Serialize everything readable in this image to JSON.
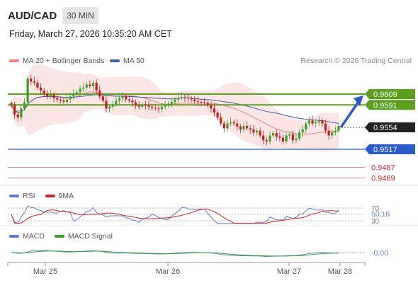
{
  "header": {
    "pair": "AUD/CAD",
    "timeframe": "30 MIN",
    "datetime": "Friday, March 27, 2026 10:35:20 AM CET"
  },
  "legend": {
    "ma20": "MA 20 + Bollinger Bands",
    "ma50": "MA 50",
    "ma20_color": "#f08080",
    "ma50_color": "#3a5f9e"
  },
  "credit": "Research © 2026 Trading Central",
  "rsi_legend": {
    "rsi": "RSI",
    "ma9": "9MA",
    "rsi_color": "#5b7fd6",
    "ma9_color": "#d22020"
  },
  "macd_legend": {
    "macd": "MACD",
    "signal": "MACD Signal",
    "macd_color": "#5b7fd6",
    "signal_color": "#3aa02a"
  },
  "chart_data": {
    "type": "candlestick",
    "ylim": [
      0.9455,
      0.9648
    ],
    "x_ticks": [
      "Mar 25",
      "Mar 26",
      "Mar 27",
      "Mar 28"
    ],
    "current_price": "0.9554",
    "levels": [
      {
        "label": "0.9609",
        "value": 0.9609,
        "color": "#5aa01e"
      },
      {
        "label": "0.9591",
        "value": 0.9591,
        "color": "#5aa01e"
      },
      {
        "label": "0.9517",
        "value": 0.9517,
        "color": "#2a5bc8"
      },
      {
        "label": "0.9487",
        "value": 0.9487,
        "color": "#e27575"
      },
      {
        "label": "0.9469",
        "value": 0.9469,
        "color": "#e27575"
      }
    ],
    "forecast_arrow": {
      "from": 0.9555,
      "to": 0.9608
    },
    "close": [
      0.959,
      0.9575,
      0.957,
      0.9585,
      0.9595,
      0.9635,
      0.963,
      0.9628,
      0.962,
      0.9615,
      0.961,
      0.9605,
      0.9608,
      0.9602,
      0.96,
      0.9598,
      0.9596,
      0.96,
      0.9605,
      0.961,
      0.9612,
      0.9618,
      0.962,
      0.9625,
      0.9622,
      0.9628,
      0.9615,
      0.9605,
      0.9598,
      0.9585,
      0.9588,
      0.9592,
      0.9598,
      0.9602,
      0.9605,
      0.96,
      0.9598,
      0.9595,
      0.959,
      0.9588,
      0.9592,
      0.959,
      0.9588,
      0.9586,
      0.9585,
      0.9584,
      0.9588,
      0.959,
      0.9593,
      0.9596,
      0.96,
      0.9602,
      0.9604,
      0.9603,
      0.9602,
      0.96,
      0.9597,
      0.9596,
      0.9595,
      0.9594,
      0.959,
      0.9585,
      0.9578,
      0.957,
      0.956,
      0.9552,
      0.956,
      0.9562,
      0.956,
      0.9555,
      0.955,
      0.9556,
      0.9552,
      0.955,
      0.9545,
      0.9548,
      0.954,
      0.9532,
      0.953,
      0.954,
      0.9544,
      0.9538,
      0.9536,
      0.953,
      0.954,
      0.9542,
      0.9532,
      0.9535,
      0.9545,
      0.955,
      0.956,
      0.9565,
      0.956,
      0.9562,
      0.9565,
      0.956,
      0.9548,
      0.954,
      0.9545,
      0.9548,
      0.9556
    ],
    "rsi": {
      "levels": [
        70,
        50,
        30
      ],
      "value_label": "50.16"
    },
    "macd": {
      "value_label": "-0.00"
    }
  }
}
